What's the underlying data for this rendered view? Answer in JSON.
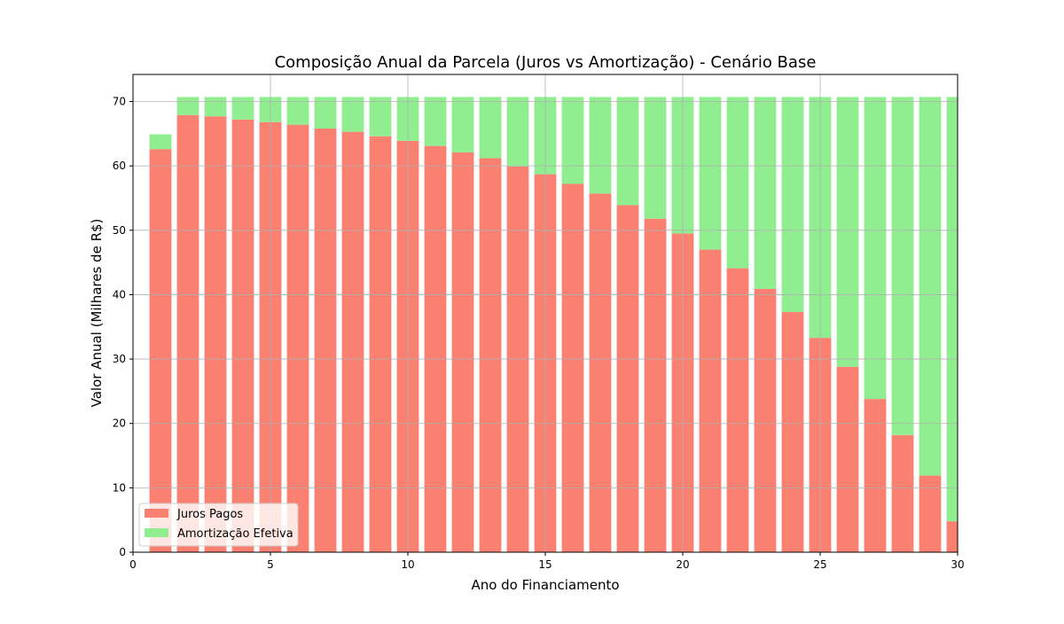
{
  "chart_data": {
    "type": "bar",
    "stacked": true,
    "title": "Composição Anual da Parcela (Juros vs Amortização) - Cenário Base",
    "xlabel": "Ano do Financiamento",
    "ylabel": "Valor Anual (Milhares de R$)",
    "xlim": [
      0,
      30
    ],
    "ylim": [
      0,
      74.2
    ],
    "xticks": [
      0,
      5,
      10,
      15,
      20,
      25,
      30
    ],
    "yticks": [
      0,
      10,
      20,
      30,
      40,
      50,
      60,
      70
    ],
    "grid": true,
    "legend_position": "lower-left",
    "x": [
      1,
      2,
      3,
      4,
      5,
      6,
      7,
      8,
      9,
      10,
      11,
      12,
      13,
      14,
      15,
      16,
      17,
      18,
      19,
      20,
      21,
      22,
      23,
      24,
      25,
      26,
      27,
      28,
      29,
      30
    ],
    "series": [
      {
        "name": "Juros Pagos",
        "color": "#fa8072",
        "values": [
          62.6,
          67.9,
          67.7,
          67.2,
          66.8,
          66.4,
          65.8,
          65.3,
          64.6,
          63.9,
          63.1,
          62.1,
          61.2,
          59.9,
          58.7,
          57.2,
          55.7,
          53.9,
          51.8,
          49.5,
          47.0,
          44.1,
          40.9,
          37.3,
          33.3,
          28.8,
          23.8,
          18.2,
          11.9,
          4.8
        ]
      },
      {
        "name": "Amortização Efetiva",
        "color": "#90ee90",
        "values": [
          2.3,
          2.8,
          3.0,
          3.5,
          3.9,
          4.3,
          4.9,
          5.4,
          6.1,
          6.8,
          7.6,
          8.6,
          9.5,
          10.8,
          12.0,
          13.5,
          15.0,
          16.8,
          18.9,
          21.2,
          23.7,
          26.6,
          29.8,
          33.4,
          37.4,
          41.9,
          46.9,
          52.5,
          58.8,
          65.9
        ]
      }
    ]
  }
}
